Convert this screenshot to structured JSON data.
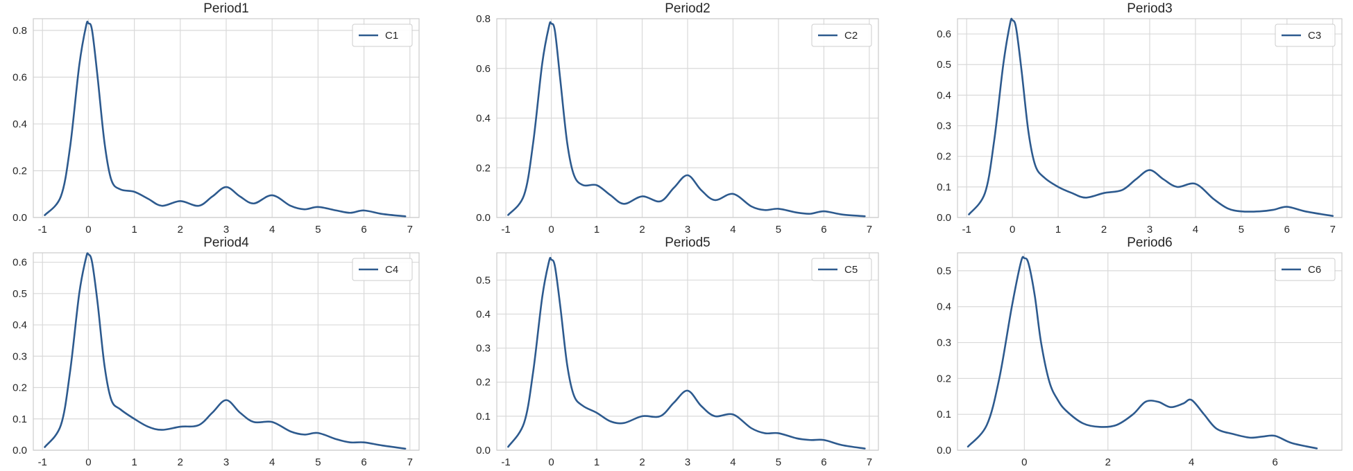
{
  "line_color": "#2d5a8e",
  "chart_data": [
    {
      "type": "line",
      "title": "Period1",
      "xlim": [
        -1.2,
        7.2
      ],
      "ylim": [
        0,
        0.85
      ],
      "xticks": [
        -1,
        0,
        1,
        2,
        3,
        4,
        5,
        6,
        7
      ],
      "yticks": [
        0.0,
        0.2,
        0.4,
        0.6,
        0.8
      ],
      "legend_position": "top-right",
      "grid": true,
      "series": [
        {
          "name": "C1",
          "x": [
            -0.95,
            -0.6,
            -0.4,
            -0.2,
            -0.05,
            0.0,
            0.08,
            0.2,
            0.35,
            0.5,
            0.7,
            1.0,
            1.3,
            1.6,
            2.0,
            2.4,
            2.7,
            3.0,
            3.3,
            3.6,
            4.0,
            4.4,
            4.7,
            5.0,
            5.4,
            5.7,
            6.0,
            6.4,
            6.9
          ],
          "y": [
            0.01,
            0.09,
            0.3,
            0.65,
            0.82,
            0.83,
            0.8,
            0.6,
            0.32,
            0.16,
            0.12,
            0.11,
            0.08,
            0.05,
            0.07,
            0.05,
            0.09,
            0.13,
            0.09,
            0.06,
            0.095,
            0.05,
            0.035,
            0.045,
            0.03,
            0.02,
            0.03,
            0.015,
            0.005
          ]
        }
      ]
    },
    {
      "type": "line",
      "title": "Period2",
      "xlim": [
        -1.2,
        7.2
      ],
      "ylim": [
        0,
        0.8
      ],
      "xticks": [
        -1,
        0,
        1,
        2,
        3,
        4,
        5,
        6,
        7
      ],
      "yticks": [
        0.0,
        0.2,
        0.4,
        0.6,
        0.8
      ],
      "legend_position": "top-right",
      "grid": true,
      "series": [
        {
          "name": "C2",
          "x": [
            -0.95,
            -0.6,
            -0.4,
            -0.2,
            -0.05,
            0.0,
            0.08,
            0.2,
            0.35,
            0.5,
            0.7,
            1.0,
            1.3,
            1.6,
            2.0,
            2.4,
            2.7,
            3.0,
            3.3,
            3.6,
            4.0,
            4.4,
            4.7,
            5.0,
            5.4,
            5.7,
            6.0,
            6.4,
            6.9
          ],
          "y": [
            0.01,
            0.09,
            0.3,
            0.62,
            0.77,
            0.78,
            0.75,
            0.55,
            0.3,
            0.17,
            0.13,
            0.13,
            0.09,
            0.055,
            0.085,
            0.065,
            0.12,
            0.17,
            0.11,
            0.07,
            0.095,
            0.045,
            0.03,
            0.035,
            0.02,
            0.015,
            0.025,
            0.012,
            0.005
          ]
        }
      ]
    },
    {
      "type": "line",
      "title": "Period3",
      "xlim": [
        -1.2,
        7.2
      ],
      "ylim": [
        0,
        0.65
      ],
      "xticks": [
        -1,
        0,
        1,
        2,
        3,
        4,
        5,
        6,
        7
      ],
      "yticks": [
        0.0,
        0.1,
        0.2,
        0.3,
        0.4,
        0.5,
        0.6
      ],
      "legend_position": "top-right",
      "grid": true,
      "series": [
        {
          "name": "C3",
          "x": [
            -0.95,
            -0.6,
            -0.4,
            -0.2,
            -0.05,
            0.0,
            0.08,
            0.2,
            0.35,
            0.5,
            0.7,
            1.0,
            1.3,
            1.6,
            2.0,
            2.4,
            2.7,
            3.0,
            3.3,
            3.6,
            4.0,
            4.4,
            4.7,
            5.0,
            5.4,
            5.7,
            6.0,
            6.4,
            7.0
          ],
          "y": [
            0.01,
            0.08,
            0.25,
            0.5,
            0.635,
            0.645,
            0.62,
            0.48,
            0.28,
            0.17,
            0.13,
            0.1,
            0.08,
            0.065,
            0.08,
            0.09,
            0.125,
            0.155,
            0.125,
            0.1,
            0.11,
            0.06,
            0.03,
            0.02,
            0.02,
            0.025,
            0.035,
            0.02,
            0.005
          ]
        }
      ]
    },
    {
      "type": "line",
      "title": "Period4",
      "xlim": [
        -1.2,
        7.2
      ],
      "ylim": [
        0,
        0.63
      ],
      "xticks": [
        -1,
        0,
        1,
        2,
        3,
        4,
        5,
        6,
        7
      ],
      "yticks": [
        0.0,
        0.1,
        0.2,
        0.3,
        0.4,
        0.5,
        0.6
      ],
      "legend_position": "top-right",
      "grid": true,
      "series": [
        {
          "name": "C4",
          "x": [
            -0.95,
            -0.6,
            -0.4,
            -0.2,
            -0.05,
            0.0,
            0.08,
            0.2,
            0.35,
            0.5,
            0.7,
            1.0,
            1.3,
            1.6,
            2.0,
            2.4,
            2.7,
            3.0,
            3.3,
            3.6,
            4.0,
            4.4,
            4.7,
            5.0,
            5.4,
            5.7,
            6.0,
            6.4,
            6.9
          ],
          "y": [
            0.01,
            0.08,
            0.25,
            0.5,
            0.615,
            0.625,
            0.6,
            0.47,
            0.27,
            0.16,
            0.13,
            0.1,
            0.075,
            0.065,
            0.075,
            0.08,
            0.12,
            0.16,
            0.12,
            0.09,
            0.09,
            0.06,
            0.05,
            0.055,
            0.035,
            0.025,
            0.025,
            0.015,
            0.005
          ]
        }
      ]
    },
    {
      "type": "line",
      "title": "Period5",
      "xlim": [
        -1.2,
        7.2
      ],
      "ylim": [
        0,
        0.58
      ],
      "xticks": [
        -1,
        0,
        1,
        2,
        3,
        4,
        5,
        6,
        7
      ],
      "yticks": [
        0.0,
        0.1,
        0.2,
        0.3,
        0.4,
        0.5
      ],
      "legend_position": "top-right",
      "grid": true,
      "series": [
        {
          "name": "C5",
          "x": [
            -0.95,
            -0.6,
            -0.4,
            -0.2,
            -0.05,
            0.0,
            0.08,
            0.2,
            0.35,
            0.5,
            0.7,
            1.0,
            1.3,
            1.6,
            2.0,
            2.4,
            2.7,
            3.0,
            3.3,
            3.6,
            4.0,
            4.4,
            4.7,
            5.0,
            5.4,
            5.7,
            6.0,
            6.4,
            6.9
          ],
          "y": [
            0.01,
            0.08,
            0.23,
            0.45,
            0.555,
            0.56,
            0.54,
            0.42,
            0.25,
            0.16,
            0.13,
            0.11,
            0.085,
            0.08,
            0.1,
            0.1,
            0.14,
            0.175,
            0.13,
            0.1,
            0.105,
            0.065,
            0.05,
            0.05,
            0.035,
            0.03,
            0.03,
            0.015,
            0.005
          ]
        }
      ]
    },
    {
      "type": "line",
      "title": "Period6",
      "xlim": [
        -1.6,
        7.6
      ],
      "ylim": [
        0,
        0.55
      ],
      "xticks": [
        0,
        2,
        4,
        6
      ],
      "yticks": [
        0.0,
        0.1,
        0.2,
        0.3,
        0.4,
        0.5
      ],
      "legend_position": "top-right",
      "grid": true,
      "series": [
        {
          "name": "C6",
          "x": [
            -1.35,
            -0.9,
            -0.6,
            -0.3,
            -0.08,
            0.0,
            0.1,
            0.25,
            0.4,
            0.6,
            0.8,
            1.0,
            1.4,
            1.8,
            2.2,
            2.6,
            2.9,
            3.2,
            3.5,
            3.8,
            4.0,
            4.3,
            4.6,
            5.0,
            5.4,
            5.7,
            6.0,
            6.4,
            7.0
          ],
          "y": [
            0.01,
            0.07,
            0.2,
            0.4,
            0.525,
            0.535,
            0.52,
            0.43,
            0.3,
            0.19,
            0.14,
            0.11,
            0.075,
            0.065,
            0.07,
            0.1,
            0.135,
            0.135,
            0.12,
            0.13,
            0.14,
            0.1,
            0.06,
            0.045,
            0.035,
            0.038,
            0.04,
            0.02,
            0.005
          ]
        }
      ]
    }
  ]
}
